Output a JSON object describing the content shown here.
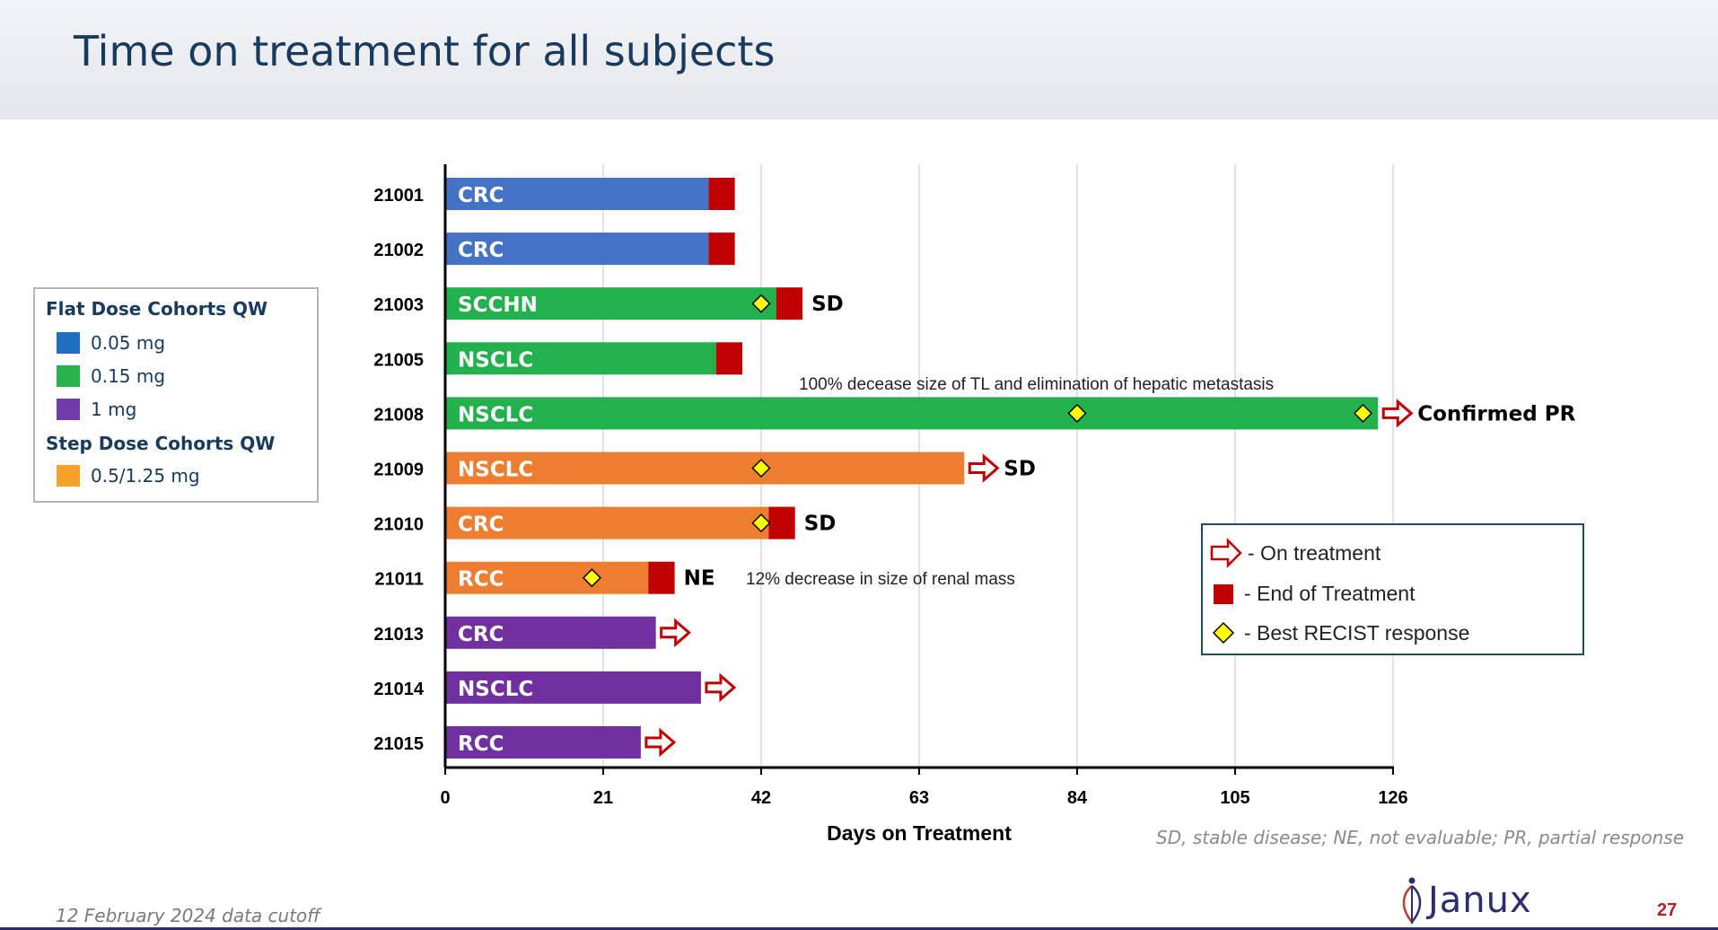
{
  "header": {
    "title": "Time on treatment for all subjects"
  },
  "legend": {
    "flat_heading": "Flat Dose Cohorts QW",
    "flat_items": [
      {
        "label": "0.05 mg",
        "color": "#1f6fc0"
      },
      {
        "label": "0.15 mg",
        "color": "#27b24a"
      },
      {
        "label": "1 mg",
        "color": "#6f3ba8"
      }
    ],
    "step_heading": "Step Dose Cohorts QW",
    "step_items": [
      {
        "label": "0.5/1.25 mg",
        "color": "#f7a12c"
      }
    ]
  },
  "chart_data": {
    "type": "bar",
    "orientation": "horizontal",
    "xlabel": "Days on Treatment",
    "xticks": [
      0,
      21,
      42,
      63,
      84,
      105,
      126
    ],
    "xlim": [
      0,
      126
    ],
    "grid": true,
    "colors": {
      "blue": "#4472c4",
      "green": "#22b14c",
      "orange": "#ed7d31",
      "purple": "#7030a0",
      "end": "#c00000",
      "diamond": "#ffff00",
      "arrow": "#c00000"
    },
    "subjects": [
      {
        "id": "21001",
        "tumor": "CRC",
        "color": "blue",
        "end": 38.5,
        "eot": true,
        "markers": [],
        "response": ""
      },
      {
        "id": "21002",
        "tumor": "CRC",
        "color": "blue",
        "end": 38.5,
        "eot": true,
        "markers": [],
        "response": ""
      },
      {
        "id": "21003",
        "tumor": "SCCHN",
        "color": "green",
        "end": 47.5,
        "eot": true,
        "markers": [
          42
        ],
        "response": "SD"
      },
      {
        "id": "21005",
        "tumor": "NSCLC",
        "color": "green",
        "end": 39.5,
        "eot": true,
        "markers": [],
        "response": ""
      },
      {
        "id": "21008",
        "tumor": "NSCLC",
        "color": "green",
        "end": 124,
        "eot": false,
        "markers": [
          84,
          122
        ],
        "response": "Confirmed PR"
      },
      {
        "id": "21009",
        "tumor": "NSCLC",
        "color": "orange",
        "end": 69,
        "eot": false,
        "markers": [
          42
        ],
        "response": "SD"
      },
      {
        "id": "21010",
        "tumor": "CRC",
        "color": "orange",
        "end": 46.5,
        "eot": true,
        "markers": [
          42
        ],
        "response": "SD"
      },
      {
        "id": "21011",
        "tumor": "RCC",
        "color": "orange",
        "end": 30.5,
        "eot": true,
        "markers": [
          19.5
        ],
        "response": "NE"
      },
      {
        "id": "21013",
        "tumor": "CRC",
        "color": "purple",
        "end": 28,
        "eot": false,
        "markers": [],
        "response": ""
      },
      {
        "id": "21014",
        "tumor": "NSCLC",
        "color": "purple",
        "end": 34,
        "eot": false,
        "markers": [],
        "response": ""
      },
      {
        "id": "21015",
        "tumor": "RCC",
        "color": "purple",
        "end": 26,
        "eot": false,
        "markers": [],
        "response": ""
      }
    ],
    "eot_width_days": 3.5,
    "annotations": [
      {
        "row": "21008",
        "text": "100% decease size of TL and elimination of hepatic metastasis"
      },
      {
        "row": "21011",
        "text": "12% decrease in size of renal mass"
      }
    ],
    "key": [
      {
        "symbol": "arrow",
        "label": "- On treatment"
      },
      {
        "symbol": "square",
        "label": "- End of Treatment"
      },
      {
        "symbol": "diamond",
        "label": "- Best RECIST response"
      }
    ]
  },
  "footnote": "SD, stable disease; NE, not evaluable; PR, partial response",
  "cutoff": "12 February 2024 data cutoff",
  "logo": {
    "text": "Janux"
  },
  "page_number": "27"
}
